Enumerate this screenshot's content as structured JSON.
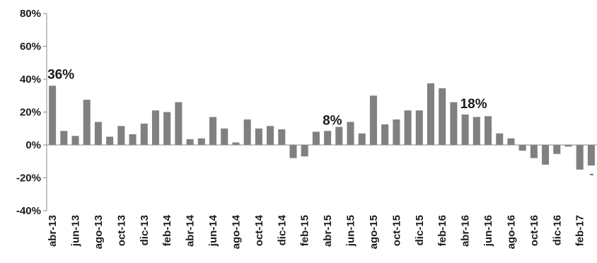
{
  "chart_data": {
    "type": "bar",
    "categories": [
      "abr-13",
      "may-13",
      "jun-13",
      "jul-13",
      "ago-13",
      "sep-13",
      "oct-13",
      "nov-13",
      "dic-13",
      "ene-14",
      "feb-14",
      "mar-14",
      "abr-14",
      "may-14",
      "jun-14",
      "jul-14",
      "ago-14",
      "sep-14",
      "oct-14",
      "nov-14",
      "dic-14",
      "ene-15",
      "feb-15",
      "mar-15",
      "abr-15",
      "may-15",
      "jun-15",
      "jul-15",
      "ago-15",
      "sep-15",
      "oct-15",
      "nov-15",
      "dic-15",
      "ene-16",
      "feb-16",
      "mar-16",
      "abr-16",
      "may-16",
      "jun-16",
      "jul-16",
      "ago-16",
      "sep-16",
      "oct-16",
      "nov-16",
      "dic-16",
      "ene-17",
      "feb-17",
      "mar-17"
    ],
    "shown_labels": [
      "abr-13",
      "jun-13",
      "ago-13",
      "oct-13",
      "dic-13",
      "feb-14",
      "abr-14",
      "jun-14",
      "ago-14",
      "oct-14",
      "dic-14",
      "feb-15",
      "abr-15",
      "jun-15",
      "ago-15",
      "oct-15",
      "dic-15",
      "feb-16",
      "abr-16",
      "jun-16",
      "ago-16",
      "oct-16",
      "dic-16",
      "feb-17"
    ],
    "series": [
      {
        "values": [
          36,
          8.5,
          5.5,
          27.5,
          14,
          5,
          11.5,
          6.5,
          13,
          21,
          20,
          26,
          3.5,
          4,
          17,
          10,
          1.5,
          15.5,
          10,
          11.5,
          9.5,
          -8,
          -7,
          8,
          8.5,
          11,
          14,
          7,
          30,
          12.5,
          15.5,
          21,
          21,
          37.5,
          34.5,
          26,
          18.5,
          17,
          17.5,
          7,
          4,
          -3.5,
          -8,
          -12,
          -5.5,
          -1,
          -15,
          -12.5
        ],
        "color": "#808080"
      }
    ],
    "ylim": [
      -40,
      80
    ],
    "yticks": [
      -40,
      -20,
      0,
      20,
      40,
      60,
      80
    ],
    "ytick_labels": [
      "-40%",
      "-20%",
      "0%",
      "20%",
      "40%",
      "60%",
      "80%"
    ],
    "annotations": [
      {
        "text": "36%",
        "category": "abr-13",
        "value": 36
      },
      {
        "text": "8%",
        "category": "abr-15",
        "value": 8
      },
      {
        "text": "18%",
        "category": "abr-16",
        "value": 18
      }
    ],
    "marker": {
      "category": "mar-17",
      "value": -18,
      "color": "#2e86c1"
    },
    "grid": false,
    "legend": "none",
    "xlabel": "",
    "ylabel": ""
  }
}
